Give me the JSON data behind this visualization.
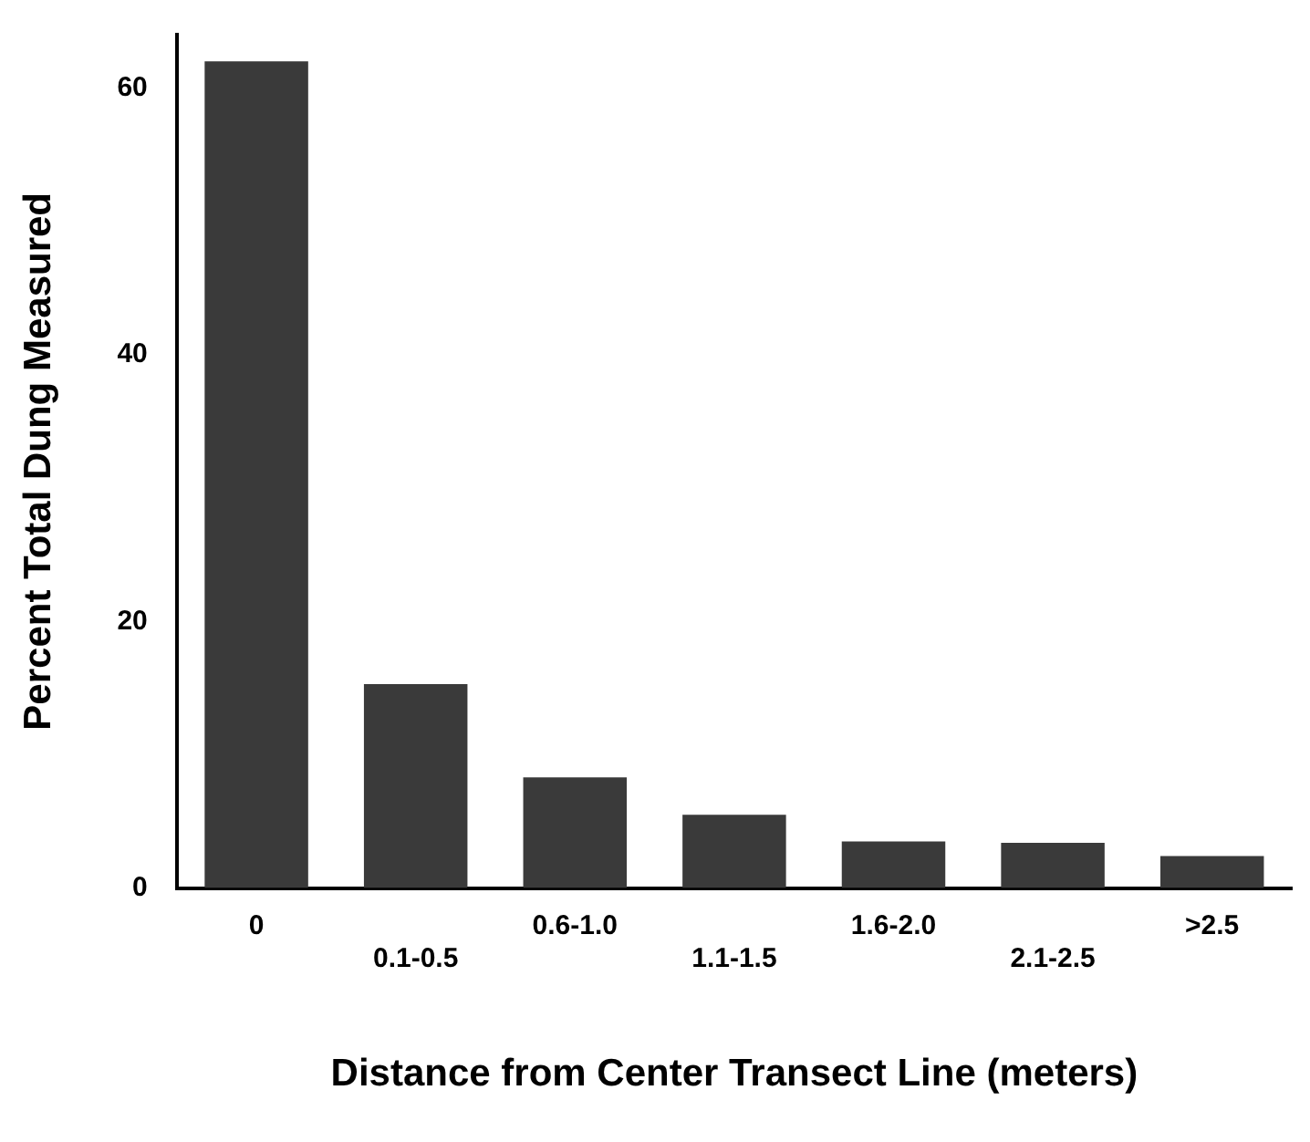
{
  "chart_data": {
    "type": "bar",
    "xlabel": "Distance from Center Transect Line (meters)",
    "ylabel": "Percent Total Dung Measured",
    "categories": [
      "0",
      "0.1-0.5",
      "0.6-1.0",
      "1.1-1.5",
      "1.6-2.0",
      "2.1-2.5",
      ">2.5"
    ],
    "values": [
      62,
      15.3,
      8.3,
      5.5,
      3.5,
      3.4,
      2.4
    ],
    "color": "#3a3a3a",
    "ylim": [
      0,
      64
    ],
    "yticks": [
      0,
      20,
      40,
      60
    ],
    "grid": false,
    "legend": false
  }
}
